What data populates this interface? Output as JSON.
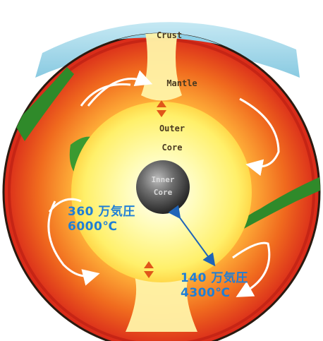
{
  "layers": {
    "crust": "Crust",
    "mantle": "Mantle",
    "outer_core_line1": "Outer",
    "outer_core_line2": "Core",
    "inner_core_line1": "Inner",
    "inner_core_line2": "Core"
  },
  "readouts": {
    "inner_pressure": "360 万気圧",
    "inner_temperature": "6000℃",
    "outer_pressure": "140 万気圧",
    "outer_temperature": "4300℃"
  },
  "colors": {
    "sky": "#8fd0e6",
    "crust_edge": "#2a1a10",
    "mantle_outer": "#d8261a",
    "mantle_mid": "#f0701e",
    "outer_core": "#fff27a",
    "inner_core": "#6a6a6a",
    "annotation": "#1f7fd6"
  }
}
